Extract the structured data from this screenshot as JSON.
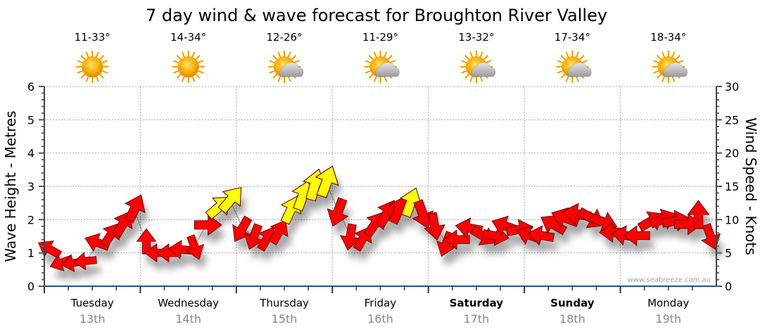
{
  "chart_data": {
    "type": "scatter",
    "title": "7 day wind & wave forecast for Broughton River Valley",
    "ylabel": "Wave Height - Metres",
    "y2label": "Wind Speed - Knots",
    "ylim": [
      0,
      6
    ],
    "y2lim": [
      0,
      30
    ],
    "yticks": [
      "0",
      "1",
      "2",
      "3",
      "4",
      "5",
      "6"
    ],
    "y2ticks": [
      "0",
      "5",
      "10",
      "15",
      "20",
      "25",
      "30"
    ],
    "watermark": "www.seabreeze.com.au",
    "days": [
      {
        "name": "Tuesday",
        "date": "13th",
        "temp": "11-33°",
        "icon": "sunny",
        "weekend": false
      },
      {
        "name": "Wednesday",
        "date": "14th",
        "temp": "14-34°",
        "icon": "sunny",
        "weekend": false
      },
      {
        "name": "Thursday",
        "date": "15th",
        "temp": "12-26°",
        "icon": "partly-cloudy",
        "weekend": false
      },
      {
        "name": "Friday",
        "date": "16th",
        "temp": "11-29°",
        "icon": "partly-cloudy",
        "weekend": false
      },
      {
        "name": "Saturday",
        "date": "17th",
        "temp": "13-32°",
        "icon": "partly-cloudy",
        "weekend": true
      },
      {
        "name": "Sunday",
        "date": "18th",
        "temp": "17-34°",
        "icon": "partly-cloudy",
        "weekend": true
      },
      {
        "name": "Monday",
        "date": "19th",
        "temp": "18-34°",
        "icon": "partly-cloudy",
        "weekend": false
      }
    ],
    "wind_series": {
      "name": "Wind (knots, arrow heading degrees)",
      "hours_step": 3,
      "speed": [
        5.5,
        3.6,
        3.5,
        3.8,
        6.5,
        7.6,
        9.2,
        11.5,
        6.5,
        5,
        5,
        5.5,
        6,
        9.2,
        11.8,
        12.9,
        8.7,
        7.6,
        7,
        8,
        11.3,
        13.4,
        15,
        15.5,
        11.3,
        7.6,
        7,
        9.2,
        10.8,
        11.3,
        12.4,
        11,
        9.2,
        6.5,
        7,
        8.7,
        7.6,
        7.6,
        9,
        8.5,
        7.6,
        7.6,
        9.2,
        10.2,
        10.8,
        10.3,
        9.7,
        8.1,
        7.6,
        7.6,
        9.7,
        10,
        9.8,
        9.3,
        10.5,
        7.6
      ],
      "heading": [
        300,
        250,
        260,
        265,
        290,
        35,
        30,
        25,
        0,
        270,
        270,
        275,
        160,
        90,
        50,
        40,
        210,
        200,
        30,
        30,
        25,
        20,
        15,
        20,
        200,
        190,
        30,
        35,
        30,
        25,
        20,
        160,
        170,
        200,
        270,
        280,
        120,
        100,
        290,
        80,
        290,
        280,
        300,
        290,
        280,
        120,
        110,
        270,
        280,
        270,
        60,
        70,
        80,
        90,
        0,
        160
      ],
      "color": [
        "#ff0000",
        "#ff0000",
        "#ff0000",
        "#ff0000",
        "#ff0000",
        "#ff0000",
        "#ff0000",
        "#ff0000",
        "#ff0000",
        "#ff0000",
        "#ff0000",
        "#ff0000",
        "#ff0000",
        "#ff0000",
        "#ffff00",
        "#ffff00",
        "#ff0000",
        "#ff0000",
        "#ff0000",
        "#ff0000",
        "#ffff00",
        "#ffff00",
        "#ffff00",
        "#ffff00",
        "#ff0000",
        "#ff0000",
        "#ff0000",
        "#ff0000",
        "#ff0000",
        "#ff0000",
        "#ffff00",
        "#ff0000",
        "#ff0000",
        "#ff0000",
        "#ff0000",
        "#ff0000",
        "#ff0000",
        "#ff0000",
        "#ff0000",
        "#ff0000",
        "#ff0000",
        "#ff0000",
        "#ff0000",
        "#ff0000",
        "#ff0000",
        "#ff0000",
        "#ff0000",
        "#ff0000",
        "#ff0000",
        "#ff0000",
        "#ff0000",
        "#ff0000",
        "#ff0000",
        "#ff0000",
        "#ff0000",
        "#ff0000"
      ]
    }
  }
}
